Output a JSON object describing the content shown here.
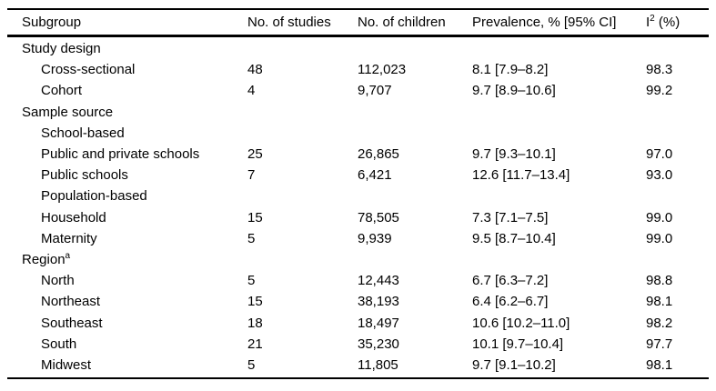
{
  "table": {
    "title": "Subgroup meta-analysis table",
    "colors": {
      "text": "#000000",
      "border": "#000000",
      "background": "#ffffff"
    },
    "columns": [
      {
        "text": "Subgroup",
        "sup": "",
        "post": ""
      },
      {
        "text": "No. of studies",
        "sup": "",
        "post": ""
      },
      {
        "text": "No. of children",
        "sup": "",
        "post": ""
      },
      {
        "text": "Prevalence, % [95% CI]",
        "sup": "",
        "post": ""
      },
      {
        "text": "I",
        "sup": "2",
        "post": " (%)"
      }
    ],
    "rows": [
      {
        "label": "Study design",
        "sup": "",
        "indent": 0,
        "studies": "",
        "children": "",
        "prevalence": "",
        "i2": ""
      },
      {
        "label": "Cross-sectional",
        "sup": "",
        "indent": 1,
        "studies": "48",
        "children": "112,023",
        "prevalence": "8.1 [7.9–8.2]",
        "i2": "98.3"
      },
      {
        "label": "Cohort",
        "sup": "",
        "indent": 1,
        "studies": "4",
        "children": "9,707",
        "prevalence": "9.7 [8.9–10.6]",
        "i2": "99.2"
      },
      {
        "label": "Sample source",
        "sup": "",
        "indent": 0,
        "studies": "",
        "children": "",
        "prevalence": "",
        "i2": ""
      },
      {
        "label": "School-based",
        "sup": "",
        "indent": 1,
        "studies": "",
        "children": "",
        "prevalence": "",
        "i2": ""
      },
      {
        "label": "Public and private schools",
        "sup": "",
        "indent": 1,
        "studies": "25",
        "children": "26,865",
        "prevalence": "9.7 [9.3–10.1]",
        "i2": "97.0"
      },
      {
        "label": "Public schools",
        "sup": "",
        "indent": 1,
        "studies": "7",
        "children": "6,421",
        "prevalence": "12.6 [11.7–13.4]",
        "i2": "93.0"
      },
      {
        "label": "Population-based",
        "sup": "",
        "indent": 1,
        "studies": "",
        "children": "",
        "prevalence": "",
        "i2": ""
      },
      {
        "label": "Household",
        "sup": "",
        "indent": 1,
        "studies": "15",
        "children": "78,505",
        "prevalence": "7.3 [7.1–7.5]",
        "i2": "99.0"
      },
      {
        "label": "Maternity",
        "sup": "",
        "indent": 1,
        "studies": "5",
        "children": "9,939",
        "prevalence": "9.5 [8.7–10.4]",
        "i2": "99.0"
      },
      {
        "label": "Region",
        "sup": "a",
        "indent": 0,
        "studies": "",
        "children": "",
        "prevalence": "",
        "i2": ""
      },
      {
        "label": "North",
        "sup": "",
        "indent": 1,
        "studies": "5",
        "children": "12,443",
        "prevalence": "6.7 [6.3–7.2]",
        "i2": "98.8"
      },
      {
        "label": "Northeast",
        "sup": "",
        "indent": 1,
        "studies": "15",
        "children": "38,193",
        "prevalence": "6.4 [6.2–6.7]",
        "i2": "98.1"
      },
      {
        "label": "Southeast",
        "sup": "",
        "indent": 1,
        "studies": "18",
        "children": "18,497",
        "prevalence": "10.6 [10.2–11.0]",
        "i2": "98.2"
      },
      {
        "label": "South",
        "sup": "",
        "indent": 1,
        "studies": "21",
        "children": "35,230",
        "prevalence": "10.1 [9.7–10.4]",
        "i2": "97.7"
      },
      {
        "label": "Midwest",
        "sup": "",
        "indent": 1,
        "studies": "5",
        "children": "11,805",
        "prevalence": "9.7 [9.1–10.2]",
        "i2": "98.1"
      }
    ]
  }
}
